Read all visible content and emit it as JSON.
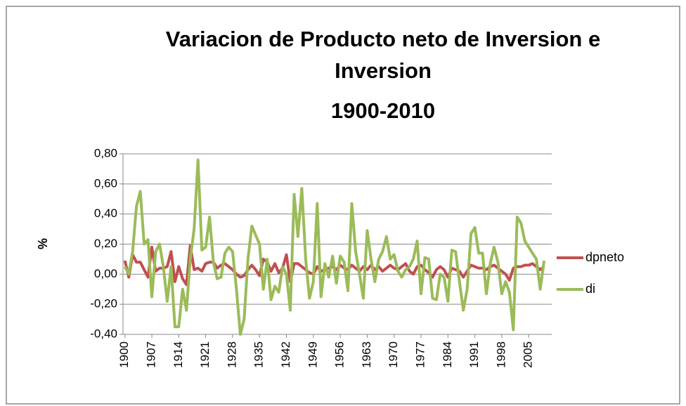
{
  "chart_data": {
    "type": "line",
    "title": [
      "Variacion de Producto neto de Inversion e",
      "Inversion",
      "1900-2010"
    ],
    "y_label": "%",
    "x": [
      1900,
      1901,
      1902,
      1903,
      1904,
      1905,
      1906,
      1907,
      1908,
      1909,
      1910,
      1911,
      1912,
      1913,
      1914,
      1915,
      1916,
      1917,
      1918,
      1919,
      1920,
      1921,
      1922,
      1923,
      1924,
      1925,
      1926,
      1927,
      1928,
      1929,
      1930,
      1931,
      1932,
      1933,
      1934,
      1935,
      1936,
      1937,
      1938,
      1939,
      1940,
      1941,
      1942,
      1943,
      1944,
      1945,
      1946,
      1947,
      1948,
      1949,
      1950,
      1951,
      1952,
      1953,
      1954,
      1955,
      1956,
      1957,
      1958,
      1959,
      1960,
      1961,
      1962,
      1963,
      1964,
      1965,
      1966,
      1967,
      1968,
      1969,
      1970,
      1971,
      1972,
      1973,
      1974,
      1975,
      1976,
      1977,
      1978,
      1979,
      1980,
      1981,
      1982,
      1983,
      1984,
      1985,
      1986,
      1987,
      1988,
      1989,
      1990,
      1991,
      1992,
      1993,
      1994,
      1995,
      1996,
      1997,
      1998,
      1999,
      2000,
      2001,
      2002,
      2003,
      2004,
      2005,
      2006,
      2007,
      2008,
      2009
    ],
    "series": [
      {
        "name": "dpneto",
        "color": "#c0504d",
        "values": [
          0.09,
          -0.02,
          0.13,
          0.08,
          0.08,
          0.03,
          -0.02,
          0.18,
          0.02,
          0.04,
          0.04,
          0.05,
          0.15,
          -0.05,
          0.05,
          -0.03,
          -0.07,
          0.19,
          0.03,
          0.04,
          0.02,
          0.07,
          0.08,
          0.08,
          0.04,
          0.06,
          0.07,
          0.05,
          0.03,
          0.0,
          -0.02,
          -0.01,
          0.03,
          0.06,
          0.03,
          -0.01,
          0.1,
          0.08,
          0.02,
          0.07,
          0.01,
          0.04,
          0.13,
          -0.05,
          0.07,
          0.07,
          0.05,
          0.03,
          0.01,
          0.0,
          0.05,
          0.02,
          0.03,
          0.04,
          0.05,
          0.03,
          0.06,
          0.04,
          0.03,
          0.06,
          0.04,
          0.02,
          0.05,
          0.03,
          0.06,
          0.03,
          0.05,
          0.02,
          0.04,
          0.06,
          0.04,
          0.03,
          0.05,
          0.07,
          0.02,
          0.0,
          0.05,
          0.06,
          0.03,
          0.01,
          -0.02,
          0.03,
          0.05,
          0.03,
          -0.02,
          0.04,
          0.03,
          0.02,
          -0.02,
          0.02,
          0.06,
          0.05,
          0.04,
          0.04,
          0.03,
          0.05,
          0.06,
          0.04,
          0.02,
          0.0,
          -0.04,
          0.04,
          0.05,
          0.05,
          0.06,
          0.06,
          0.07,
          0.05,
          0.03,
          0.05
        ]
      },
      {
        "name": "di",
        "color": "#9bbb59",
        "values": [
          0.05,
          0.0,
          0.15,
          0.45,
          0.55,
          0.2,
          0.23,
          -0.15,
          0.15,
          0.2,
          0.05,
          -0.18,
          0.05,
          -0.35,
          -0.35,
          -0.1,
          -0.24,
          0.1,
          0.3,
          0.76,
          0.16,
          0.18,
          0.38,
          0.08,
          -0.03,
          -0.02,
          0.14,
          0.18,
          0.15,
          -0.1,
          -0.4,
          -0.3,
          0.1,
          0.32,
          0.26,
          0.2,
          -0.1,
          0.1,
          -0.17,
          -0.08,
          -0.12,
          0.05,
          0.0,
          -0.24,
          0.53,
          0.25,
          0.57,
          0.1,
          -0.16,
          -0.05,
          0.47,
          -0.15,
          0.07,
          -0.02,
          0.12,
          -0.06,
          0.12,
          0.08,
          -0.11,
          0.47,
          0.15,
          0.0,
          -0.16,
          0.29,
          0.1,
          -0.05,
          0.1,
          0.15,
          0.25,
          0.1,
          0.13,
          0.02,
          -0.02,
          0.03,
          0.05,
          0.1,
          0.22,
          -0.13,
          0.11,
          0.1,
          -0.16,
          -0.17,
          0.0,
          -0.02,
          -0.18,
          0.16,
          0.15,
          -0.05,
          -0.24,
          -0.1,
          0.27,
          0.31,
          0.14,
          0.14,
          -0.13,
          0.07,
          0.18,
          0.08,
          -0.13,
          -0.05,
          -0.12,
          -0.37,
          0.38,
          0.34,
          0.22,
          0.18,
          0.14,
          0.1,
          -0.1,
          0.09
        ]
      }
    ],
    "xlim": [
      1899.5,
      2011
    ],
    "xticks": [
      1900,
      1907,
      1914,
      1921,
      1928,
      1935,
      1942,
      1949,
      1956,
      1963,
      1970,
      1977,
      1984,
      1991,
      1998,
      2005
    ],
    "ylim": [
      -0.4,
      0.8
    ],
    "yticks": [
      {
        "value": -0.4,
        "label": "-0,40"
      },
      {
        "value": -0.2,
        "label": "-0,20"
      },
      {
        "value": 0,
        "label": "0,00"
      },
      {
        "value": 0.2,
        "label": "0,20"
      },
      {
        "value": 0.4,
        "label": "0,40"
      },
      {
        "value": 0.6,
        "label": "0,60"
      },
      {
        "value": 0.8,
        "label": "0,80"
      }
    ],
    "grid": true,
    "legend": "right"
  }
}
